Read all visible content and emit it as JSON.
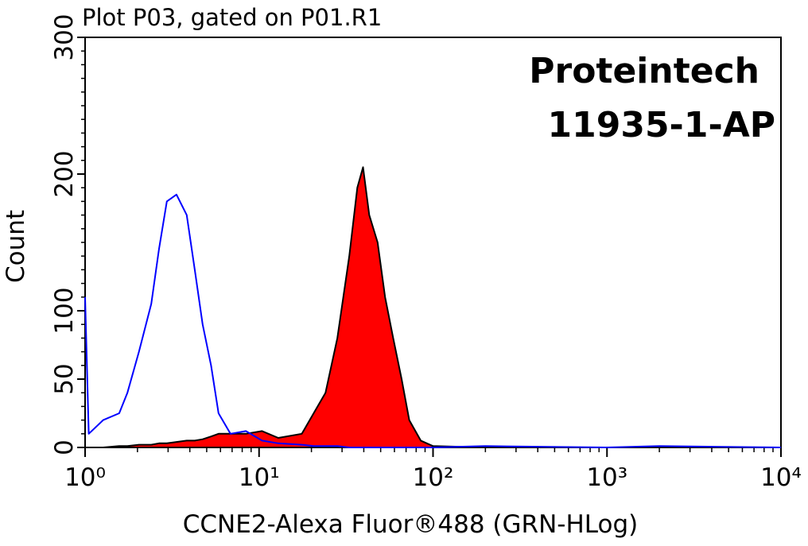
{
  "chart_data": {
    "type": "line",
    "title": "Plot P03, gated on P01.R1",
    "xlabel": "CCNE2-Alexa Fluor®488 (GRN-HLog)",
    "ylabel": "Count",
    "annotations": [
      "Proteintech",
      "11935-1-AP"
    ],
    "xscale": "log",
    "xlim": [
      1,
      10000
    ],
    "xticks": [
      {
        "value": 1,
        "label": "10⁰"
      },
      {
        "value": 10,
        "label": "10¹"
      },
      {
        "value": 100,
        "label": "10²"
      },
      {
        "value": 1000,
        "label": "10³"
      },
      {
        "value": 10000,
        "label": "10⁴"
      }
    ],
    "ylim": [
      0,
      300
    ],
    "yticks": [
      0,
      50,
      100,
      200,
      300
    ],
    "x": [
      1,
      1.05,
      1.27,
      1.57,
      1.75,
      2.04,
      2.4,
      2.66,
      2.95,
      3.35,
      3.84,
      4.27,
      4.74,
      5.3,
      5.85,
      6.85,
      8.4,
      10.4,
      12.9,
      17.6,
      20.6,
      24.1,
      28.2,
      33,
      36.7,
      39.6,
      43,
      48,
      53,
      59,
      66,
      73,
      85,
      100,
      200,
      1000,
      2000,
      10000
    ],
    "series": [
      {
        "color": "#ff0000",
        "edgecolor": "#000000",
        "fill": true,
        "values": [
          0,
          0,
          0,
          1,
          1,
          2,
          2,
          3,
          3,
          4,
          5,
          5,
          6,
          8,
          10,
          10,
          10,
          12,
          7,
          10,
          25,
          40,
          80,
          140,
          190,
          205,
          170,
          150,
          110,
          80,
          50,
          20,
          5,
          1,
          0,
          0,
          0,
          0
        ]
      },
      {
        "color": "#0000ff",
        "fill": false,
        "values": [
          110,
          10,
          20,
          25,
          40,
          70,
          105,
          145,
          180,
          185,
          170,
          130,
          90,
          60,
          25,
          10,
          12,
          5,
          3,
          2,
          1,
          1,
          1,
          0,
          0,
          0,
          0,
          0,
          0,
          0,
          0,
          0,
          0,
          0,
          1,
          0,
          1,
          0
        ]
      }
    ]
  }
}
